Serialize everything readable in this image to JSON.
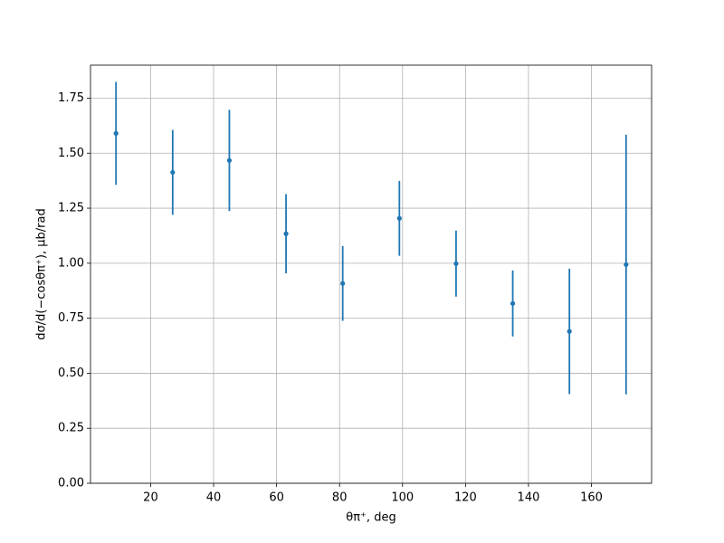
{
  "chart_data": {
    "type": "errorbar",
    "xlabel": "θπ⁺, deg",
    "ylabel": "dσ/d(−cosθπ⁺), μb/rad",
    "x": [
      9,
      27,
      45,
      63,
      81,
      99,
      117,
      135,
      153,
      171
    ],
    "values": [
      1.59,
      1.413,
      1.467,
      1.134,
      0.908,
      1.204,
      0.998,
      0.817,
      0.69,
      0.994
    ],
    "errors": [
      0.234,
      0.193,
      0.23,
      0.18,
      0.17,
      0.17,
      0.15,
      0.15,
      0.285,
      0.59
    ],
    "color": "#1f77b4",
    "xlim": [
      0.9,
      179.1
    ],
    "ylim": [
      0,
      1.9
    ],
    "xticks": [
      20,
      40,
      60,
      80,
      100,
      120,
      140,
      160
    ],
    "yticks": [
      {
        "value": 0,
        "label": "0.00"
      },
      {
        "value": 0.25,
        "label": "0.25"
      },
      {
        "value": 0.5,
        "label": "0.50"
      },
      {
        "value": 0.75,
        "label": "0.75"
      },
      {
        "value": 1,
        "label": "1.00"
      },
      {
        "value": 1.25,
        "label": "1.25"
      },
      {
        "value": 1.5,
        "label": "1.50"
      },
      {
        "value": 1.75,
        "label": "1.75"
      }
    ],
    "grid": true
  }
}
